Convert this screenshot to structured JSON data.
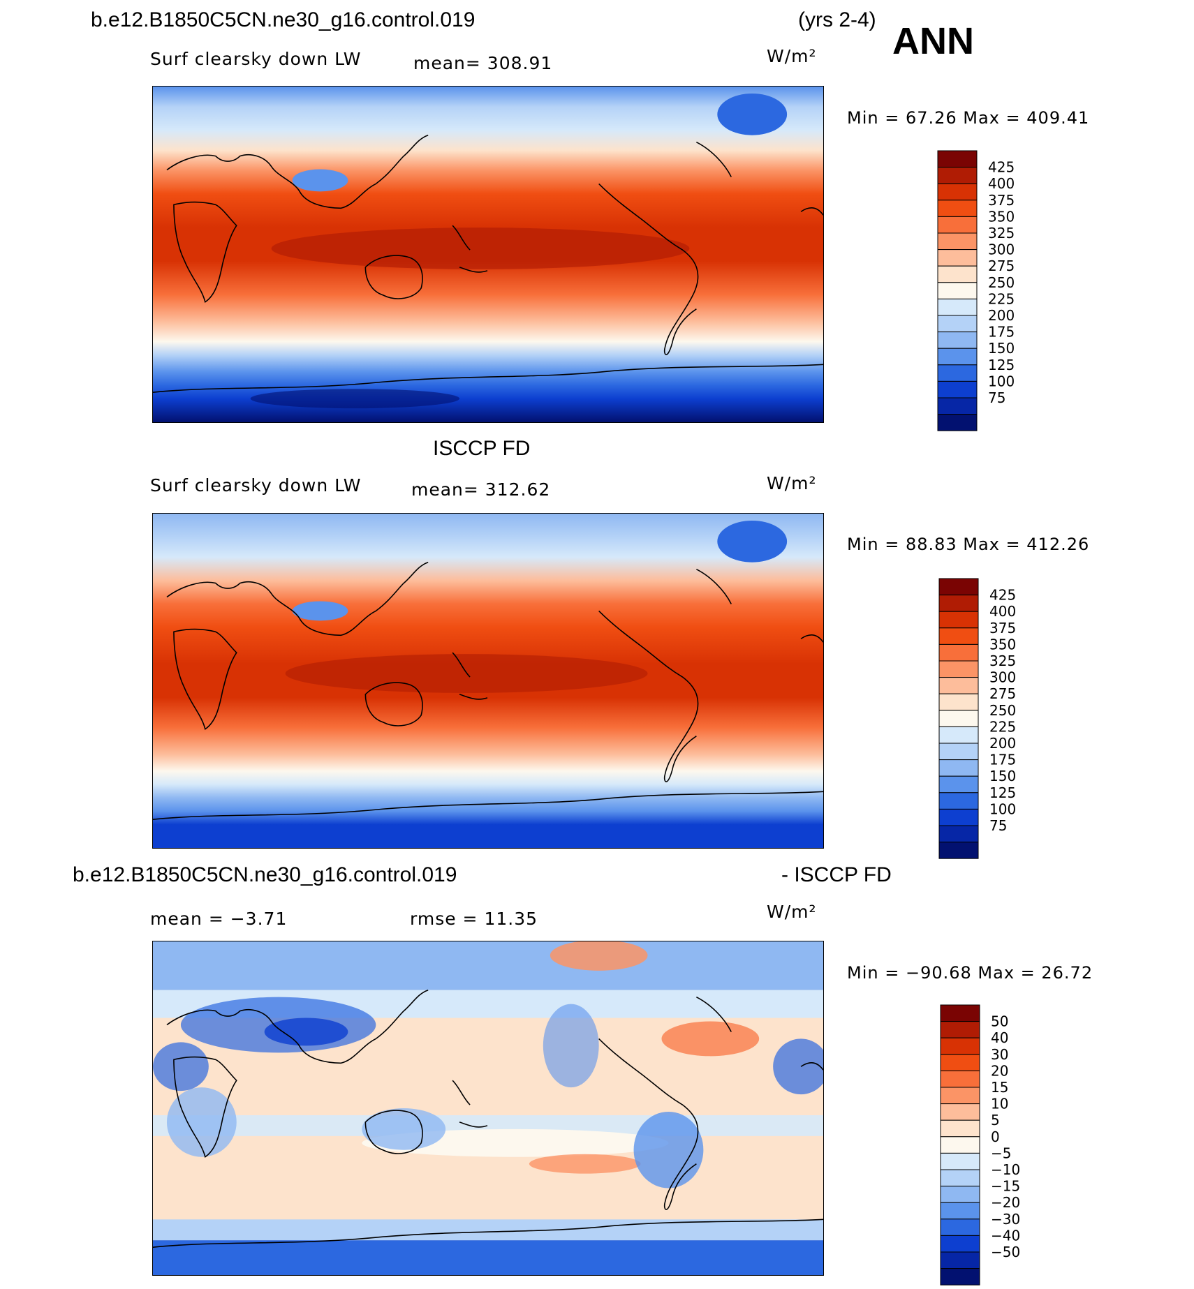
{
  "header": {
    "case_name": "b.e12.B1850C5CN.ne30_g16.control.019",
    "years": "(yrs 2-4)",
    "season": "ANN"
  },
  "panels": [
    {
      "id": "model",
      "variable": "Surf clearsky down LW",
      "stat_text": "mean=  308.91",
      "units": "W/m²",
      "minmax": "Min =   67.26 Max = 409.41",
      "colorbar_labels": [
        "425",
        "400",
        "375",
        "350",
        "325",
        "300",
        "275",
        "250",
        "225",
        "200",
        "175",
        "150",
        "125",
        "100",
        "75"
      ],
      "colorbar_colors": [
        "#7a0403",
        "#b01c04",
        "#d83204",
        "#f04e12",
        "#f86f3a",
        "#fb9466",
        "#fdbd9b",
        "#fde3cc",
        "#fdf8ee",
        "#d6e9fa",
        "#b4d2f7",
        "#8fb8f2",
        "#5b93ec",
        "#2c68e0",
        "#0d3fd0",
        "#0626a6",
        "#021170"
      ]
    },
    {
      "id": "obs",
      "title": "ISCCP FD",
      "variable": "Surf clearsky down LW",
      "stat_text": "mean=  312.62",
      "units": "W/m²",
      "minmax": "Min =   88.83 Max = 412.26",
      "colorbar_labels": [
        "425",
        "400",
        "375",
        "350",
        "325",
        "300",
        "275",
        "250",
        "225",
        "200",
        "175",
        "150",
        "125",
        "100",
        "75"
      ],
      "colorbar_colors": [
        "#7a0403",
        "#b01c04",
        "#d83204",
        "#f04e12",
        "#f86f3a",
        "#fb9466",
        "#fdbd9b",
        "#fde3cc",
        "#fdf8ee",
        "#d6e9fa",
        "#b4d2f7",
        "#8fb8f2",
        "#5b93ec",
        "#2c68e0",
        "#0d3fd0",
        "#0626a6",
        "#021170"
      ]
    },
    {
      "id": "diff",
      "title_left": "b.e12.B1850C5CN.ne30_g16.control.019",
      "title_right": "- ISCCP FD",
      "stat_mean": "mean =   −3.71",
      "stat_rmse": "rmse =   11.35",
      "units": "W/m²",
      "minmax": "Min = −90.68 Max =   26.72",
      "colorbar_labels": [
        "50",
        "40",
        "30",
        "20",
        "15",
        "10",
        "5",
        "0",
        "−5",
        "−10",
        "−15",
        "−20",
        "−30",
        "−40",
        "−50"
      ],
      "colorbar_colors": [
        "#7a0403",
        "#b01c04",
        "#d83204",
        "#f04e12",
        "#f86f3a",
        "#fb9466",
        "#fdbd9b",
        "#fde3cc",
        "#fdf8ee",
        "#d6e9fa",
        "#b4d2f7",
        "#8fb8f2",
        "#5b93ec",
        "#2c68e0",
        "#0d3fd0",
        "#0626a6",
        "#021170"
      ]
    }
  ]
}
